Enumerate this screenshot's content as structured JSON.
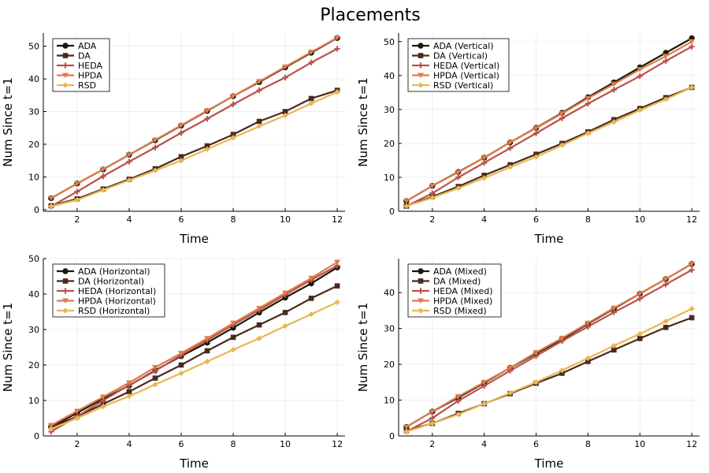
{
  "title": "Placements",
  "colors": {
    "ADA": "#1a1a0a",
    "DA": "#4a2a1e",
    "HEDA": "#b8524a",
    "HPDA": "#e07a4a",
    "RSD": "#e8b850"
  },
  "chart_data": [
    {
      "type": "line",
      "xlabel": "Time",
      "ylabel": "Num Since t=1",
      "x": [
        1,
        2,
        3,
        4,
        5,
        6,
        7,
        8,
        9,
        10,
        11,
        12
      ],
      "xlim": [
        0.7,
        12.3
      ],
      "ylim": [
        -0.5,
        54
      ],
      "xticks": [
        2,
        4,
        6,
        8,
        10,
        12
      ],
      "yticks": [
        0,
        10,
        20,
        30,
        40,
        50
      ],
      "legend_position": "top-left",
      "series": [
        {
          "name": "ADA",
          "marker": "circle",
          "values": [
            3.5,
            8,
            12.3,
            16.8,
            21.2,
            25.7,
            30.2,
            34.7,
            39,
            43.5,
            48,
            52.5
          ]
        },
        {
          "name": "DA",
          "marker": "square",
          "values": [
            1.2,
            3.3,
            6.3,
            9.3,
            12.5,
            16.2,
            19.5,
            23,
            27,
            30,
            34,
            36.5
          ]
        },
        {
          "name": "HEDA",
          "marker": "cross",
          "values": [
            1,
            5.5,
            10.2,
            14.7,
            19,
            23.5,
            27.8,
            32.2,
            36.5,
            40.4,
            45,
            49.2
          ]
        },
        {
          "name": "HPDA",
          "marker": "triangle-down",
          "values": [
            3.5,
            8,
            12.3,
            16.8,
            21.3,
            25.8,
            30.3,
            34.7,
            39.2,
            43.7,
            48.2,
            52.6
          ]
        },
        {
          "name": "RSD",
          "marker": "diamond",
          "values": [
            1,
            3,
            6,
            9,
            12,
            15,
            18.5,
            22,
            25.5,
            28.8,
            32.5,
            36
          ]
        }
      ]
    },
    {
      "type": "line",
      "xlabel": "Time",
      "ylabel": "Num Since t=1",
      "x": [
        1,
        2,
        3,
        4,
        5,
        6,
        7,
        8,
        9,
        10,
        11,
        12
      ],
      "xlim": [
        0.7,
        12.3
      ],
      "ylim": [
        0,
        52.5
      ],
      "xticks": [
        2,
        4,
        6,
        8,
        10,
        12
      ],
      "yticks": [
        0,
        10,
        20,
        30,
        40,
        50
      ],
      "legend_position": "top-left",
      "series": [
        {
          "name": "ADA (Vertical)",
          "marker": "circle",
          "values": [
            3,
            7.5,
            11.6,
            15.8,
            20.3,
            24.6,
            29,
            33.6,
            38,
            42.4,
            46.7,
            51
          ]
        },
        {
          "name": "DA (Vertical)",
          "marker": "square",
          "values": [
            1.5,
            4.3,
            7.3,
            10.6,
            13.7,
            16.8,
            20,
            23.4,
            27,
            30.3,
            33.5,
            36.5
          ]
        },
        {
          "name": "HEDA (Vertical)",
          "marker": "cross",
          "values": [
            1.5,
            5.3,
            10,
            14.3,
            18.6,
            23,
            27.4,
            31.7,
            35.8,
            39.8,
            44.3,
            48.5
          ]
        },
        {
          "name": "HPDA (Vertical)",
          "marker": "triangle-down",
          "values": [
            3,
            7.5,
            11.5,
            15.8,
            20.3,
            24.5,
            28.8,
            33.3,
            37.5,
            41.8,
            45.7,
            50
          ]
        },
        {
          "name": "RSD (Vertical)",
          "marker": "diamond",
          "values": [
            1.5,
            4,
            6.8,
            9.8,
            13,
            16,
            19.5,
            23,
            26.3,
            29.8,
            33,
            36.5
          ]
        }
      ]
    },
    {
      "type": "line",
      "xlabel": "Time",
      "ylabel": "Num Since t=1",
      "x": [
        1,
        2,
        3,
        4,
        5,
        6,
        7,
        8,
        9,
        10,
        11,
        12
      ],
      "xlim": [
        0.7,
        12.3
      ],
      "ylim": [
        0,
        50
      ],
      "xticks": [
        2,
        4,
        6,
        8,
        10,
        12
      ],
      "yticks": [
        0,
        10,
        20,
        30,
        40,
        50
      ],
      "legend_position": "top-left",
      "series": [
        {
          "name": "ADA (Horizontal)",
          "marker": "circle",
          "values": [
            2.5,
            6.5,
            10.5,
            14.2,
            18.5,
            22.5,
            26.3,
            30.5,
            34.8,
            39,
            43,
            47.5
          ]
        },
        {
          "name": "DA (Horizontal)",
          "marker": "square",
          "values": [
            2.5,
            5.5,
            9,
            12.5,
            16.3,
            20,
            24,
            27.8,
            31.3,
            34.8,
            38.8,
            42.3
          ]
        },
        {
          "name": "HEDA (Horizontal)",
          "marker": "cross",
          "values": [
            1.2,
            5.5,
            10,
            14.3,
            18.3,
            22.8,
            27,
            31.3,
            35.5,
            39.8,
            44,
            48
          ]
        },
        {
          "name": "HPDA (Horizontal)",
          "marker": "triangle-down",
          "values": [
            3,
            7,
            11,
            15,
            19.3,
            23.3,
            27.5,
            31.8,
            36,
            40.3,
            44.5,
            49
          ]
        },
        {
          "name": "RSD (Horizontal)",
          "marker": "diamond",
          "values": [
            2,
            5,
            8.3,
            11.2,
            14.5,
            17.7,
            21,
            24.3,
            27.5,
            31,
            34.3,
            37.7
          ]
        }
      ]
    },
    {
      "type": "line",
      "xlabel": "Time",
      "ylabel": "Num Since t=1",
      "x": [
        1,
        2,
        3,
        4,
        5,
        6,
        7,
        8,
        9,
        10,
        11,
        12
      ],
      "xlim": [
        0.7,
        12.3
      ],
      "ylim": [
        0,
        49.5
      ],
      "xticks": [
        2,
        4,
        6,
        8,
        10,
        12
      ],
      "yticks": [
        0,
        10,
        20,
        30,
        40
      ],
      "legend_position": "top-left",
      "series": [
        {
          "name": "ADA (Mixed)",
          "marker": "circle",
          "values": [
            2.5,
            6.8,
            10.7,
            14.8,
            19,
            23,
            27,
            31.3,
            35.5,
            39.7,
            43.8,
            48
          ]
        },
        {
          "name": "DA (Mixed)",
          "marker": "square",
          "values": [
            1.5,
            3.5,
            6.3,
            9,
            11.8,
            14.7,
            17.5,
            20.8,
            24,
            27.2,
            30.3,
            33
          ]
        },
        {
          "name": "HEDA (Mixed)",
          "marker": "cross",
          "values": [
            1.2,
            5,
            9.8,
            14,
            18.2,
            22.3,
            26.5,
            30.5,
            34.5,
            38.3,
            42.3,
            46.3
          ]
        },
        {
          "name": "HPDA (Mixed)",
          "marker": "triangle-down",
          "values": [
            2.5,
            6.8,
            11,
            15,
            19,
            23.3,
            27.3,
            31.5,
            35.7,
            39.7,
            43.8,
            48
          ]
        },
        {
          "name": "RSD (Mixed)",
          "marker": "diamond",
          "values": [
            1.2,
            3.5,
            6,
            9,
            12,
            15,
            18.3,
            21.7,
            25.2,
            28.5,
            32,
            35.5
          ]
        }
      ]
    }
  ]
}
